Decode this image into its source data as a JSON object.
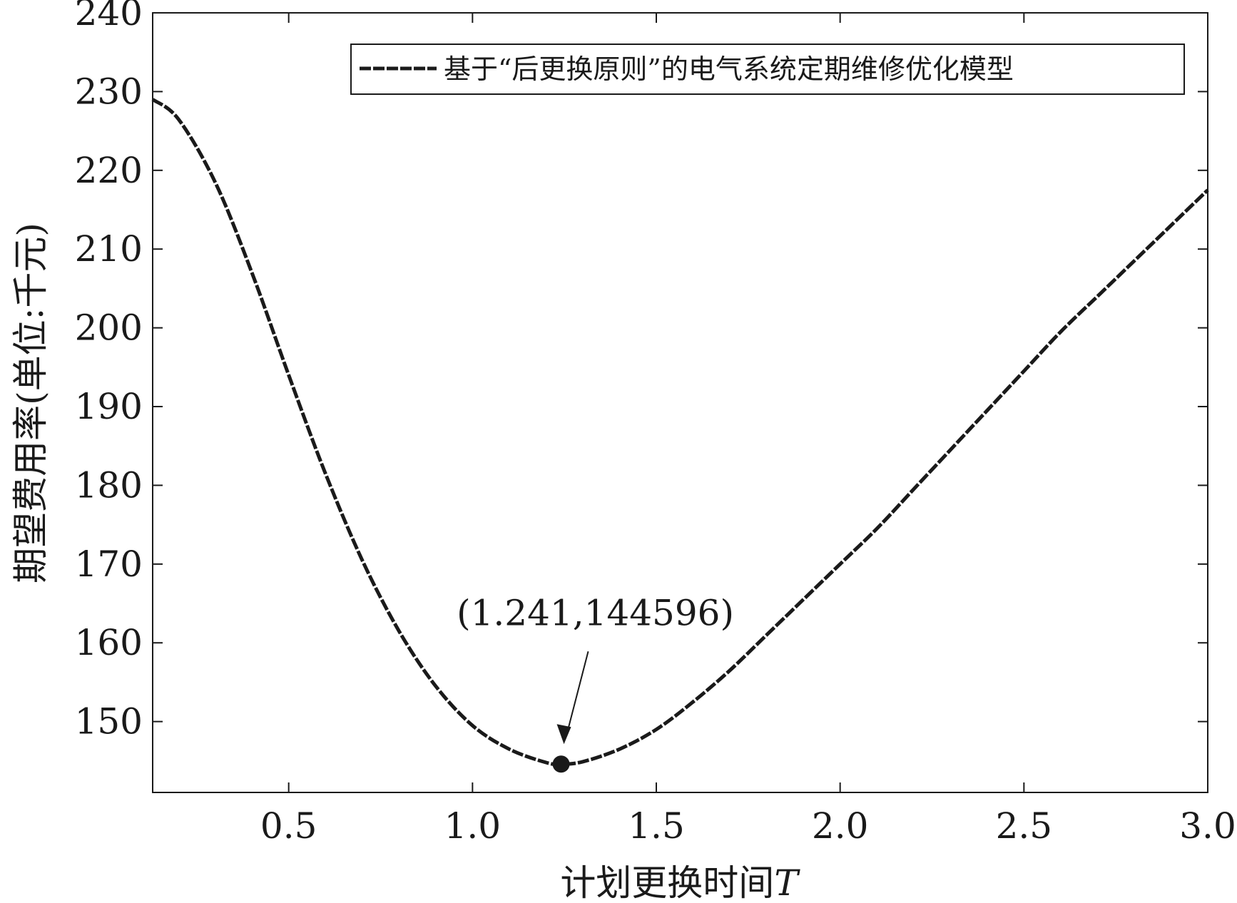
{
  "chart_data": {
    "type": "line",
    "xlabel": "计划更换时间",
    "xlabel_var": "T",
    "ylabel": "期望费用率(单位:千元)",
    "xlim": [
      0.13,
      3.0
    ],
    "ylim": [
      141,
      240
    ],
    "xticks": [
      0.5,
      1.0,
      1.5,
      2.0,
      2.5,
      3.0
    ],
    "xtick_labels": [
      "0.5",
      "1.0",
      "1.5",
      "2.0",
      "2.5",
      "3.0"
    ],
    "yticks": [
      150,
      160,
      170,
      180,
      190,
      200,
      210,
      220,
      230,
      240
    ],
    "ytick_labels": [
      "150",
      "160",
      "170",
      "180",
      "190",
      "200",
      "210",
      "220",
      "230",
      "240"
    ],
    "grid": false,
    "legend_position": "top-right",
    "series": [
      {
        "name": "基于“后更换原则”的电气系统定期维修优化模型",
        "line_style": "dashed",
        "color": "#1a1a1a",
        "x": [
          0.13,
          0.2,
          0.3,
          0.4,
          0.5,
          0.6,
          0.7,
          0.8,
          0.9,
          1.0,
          1.1,
          1.2,
          1.241,
          1.3,
          1.4,
          1.5,
          1.6,
          1.7,
          1.8,
          1.9,
          2.0,
          2.1,
          2.2,
          2.3,
          2.4,
          2.5,
          2.6,
          2.7,
          2.8,
          2.9,
          3.0
        ],
        "y": [
          229,
          226.5,
          218.5,
          207,
          194,
          181.5,
          170.5,
          161.5,
          154.5,
          149.5,
          146.5,
          144.8,
          144.6,
          144.9,
          146.5,
          149,
          152.5,
          156.5,
          161,
          165.5,
          170,
          174.5,
          179.5,
          184.5,
          189.5,
          194.5,
          199.5,
          204,
          208.5,
          213,
          217.5
        ]
      }
    ],
    "marker": {
      "x": 1.241,
      "y": 144.6
    },
    "annotation": {
      "text": "(1.241,144596)",
      "x": 1.241,
      "y": 144.6
    }
  }
}
